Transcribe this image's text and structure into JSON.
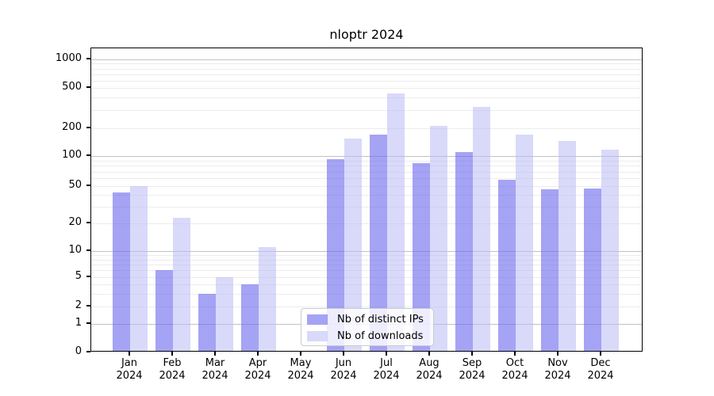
{
  "chart_data": {
    "type": "bar",
    "title": "nloptr 2024",
    "categories": [
      "Jan",
      "Feb",
      "Mar",
      "Apr",
      "May",
      "Jun",
      "Jul",
      "Aug",
      "Sep",
      "Oct",
      "Nov",
      "Dec"
    ],
    "year": "2024",
    "series": [
      {
        "name": "Nb of distinct IPs",
        "color": "#6965ed99",
        "values": [
          43,
          6,
          3,
          4,
          0,
          93,
          170,
          85,
          110,
          58,
          46,
          47
        ]
      },
      {
        "name": "Nb of downloads",
        "color": "#babaf68c",
        "values": [
          50,
          23,
          5,
          11,
          0,
          155,
          440,
          210,
          325,
          170,
          145,
          118
        ]
      }
    ],
    "yticks": [
      0,
      1,
      2,
      5,
      10,
      20,
      50,
      100,
      200,
      500,
      1000
    ],
    "ylim": [
      0,
      1300
    ],
    "xlabel": "",
    "ylabel": "",
    "scale": "log-like (compressed near zero, linear 0-1)",
    "grid": true,
    "legend": {
      "position": "bottom-center",
      "labels": [
        "Nb of distinct IPs",
        "Nb of downloads"
      ]
    },
    "colors": {
      "grid_major": "#c2c2c2",
      "grid_minor": "#ececec",
      "axis": "#000000",
      "legend_border": "#cccccc",
      "bar_distinct_ips_over_white": "#a5a2f4",
      "bar_downloads_over_white": "#d9d9fa"
    }
  }
}
